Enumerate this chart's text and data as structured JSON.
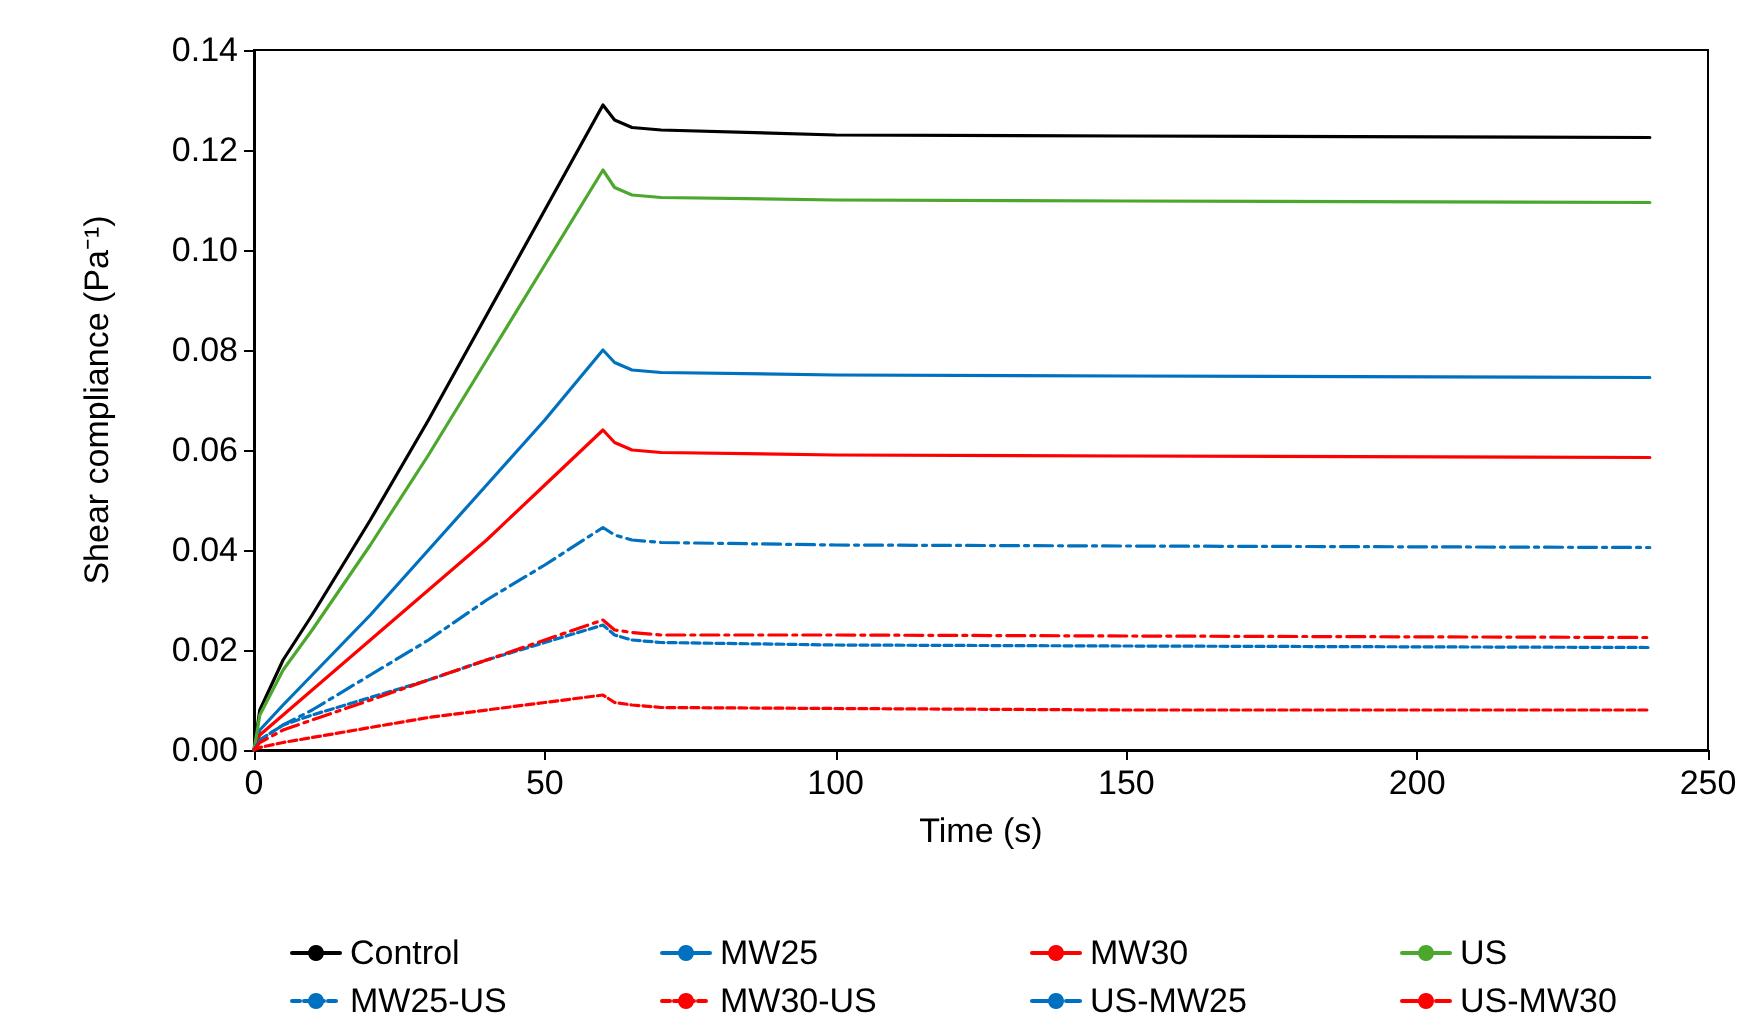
{
  "chart_data": {
    "type": "line",
    "xlabel": "Time (s)",
    "ylabel": "Shear compliance (Pa⁻¹)",
    "x": [
      0,
      1,
      5,
      10,
      20,
      30,
      40,
      50,
      60,
      62,
      65,
      70,
      100,
      150,
      240
    ],
    "xlim": [
      0,
      250
    ],
    "xticks": [
      0,
      50,
      100,
      150,
      200,
      250
    ],
    "ylim": [
      0,
      0.14
    ],
    "yticks": [
      {
        "value": 0,
        "label": "0.00"
      },
      {
        "value": 0.02,
        "label": "0.02"
      },
      {
        "value": 0.04,
        "label": "0.04"
      },
      {
        "value": 0.06,
        "label": "0.06"
      },
      {
        "value": 0.08,
        "label": "0.08"
      },
      {
        "value": 0.1,
        "label": "0.10"
      },
      {
        "value": 0.12,
        "label": "0.12"
      },
      {
        "value": 0.14,
        "label": "0.14"
      }
    ],
    "grid": false,
    "legend": "bottom",
    "marker": "none",
    "series": [
      {
        "name": "Control",
        "color": "#000000",
        "line_style": "solid",
        "values": [
          0,
          0.008,
          0.018,
          0.027,
          0.046,
          0.066,
          0.087,
          0.108,
          0.129,
          0.126,
          0.1245,
          0.124,
          0.123,
          0.1228,
          0.1225
        ]
      },
      {
        "name": "MW25",
        "color": "#0070c0",
        "line_style": "solid",
        "values": [
          0,
          0.004,
          0.009,
          0.015,
          0.027,
          0.04,
          0.053,
          0.066,
          0.08,
          0.0775,
          0.076,
          0.0755,
          0.075,
          0.0748,
          0.0745
        ]
      },
      {
        "name": "MW30",
        "color": "#ff0000",
        "line_style": "solid",
        "values": [
          0,
          0.003,
          0.007,
          0.012,
          0.022,
          0.032,
          0.042,
          0.053,
          0.064,
          0.0615,
          0.06,
          0.0595,
          0.059,
          0.0588,
          0.0585
        ]
      },
      {
        "name": "US",
        "color": "#4ca82c",
        "line_style": "solid",
        "values": [
          0,
          0.007,
          0.016,
          0.024,
          0.041,
          0.059,
          0.078,
          0.097,
          0.116,
          0.1125,
          0.111,
          0.1105,
          0.11,
          0.1098,
          0.1095
        ]
      },
      {
        "name": "MW25-US",
        "color": "#0070c0",
        "line_style": "dashed",
        "values": [
          0,
          0.002,
          0.005,
          0.007,
          0.0105,
          0.014,
          0.018,
          0.0215,
          0.025,
          0.023,
          0.022,
          0.0215,
          0.021,
          0.0208,
          0.0205
        ]
      },
      {
        "name": "MW30-US",
        "color": "#ff0000",
        "line_style": "dashed",
        "values": [
          0,
          0.0005,
          0.0015,
          0.0025,
          0.0045,
          0.0065,
          0.008,
          0.0095,
          0.011,
          0.0095,
          0.009,
          0.0085,
          0.0083,
          0.008,
          0.008
        ]
      },
      {
        "name": "US-MW25",
        "color": "#0070c0",
        "line_style": "dashdot",
        "values": [
          0,
          0.002,
          0.005,
          0.008,
          0.015,
          0.022,
          0.03,
          0.037,
          0.0445,
          0.043,
          0.042,
          0.0415,
          0.041,
          0.0408,
          0.0405
        ]
      },
      {
        "name": "US-MW30",
        "color": "#ff0000",
        "line_style": "dashdot",
        "values": [
          0,
          0.0015,
          0.004,
          0.006,
          0.01,
          0.014,
          0.018,
          0.022,
          0.026,
          0.024,
          0.0235,
          0.023,
          0.023,
          0.0228,
          0.0225
        ]
      }
    ]
  }
}
